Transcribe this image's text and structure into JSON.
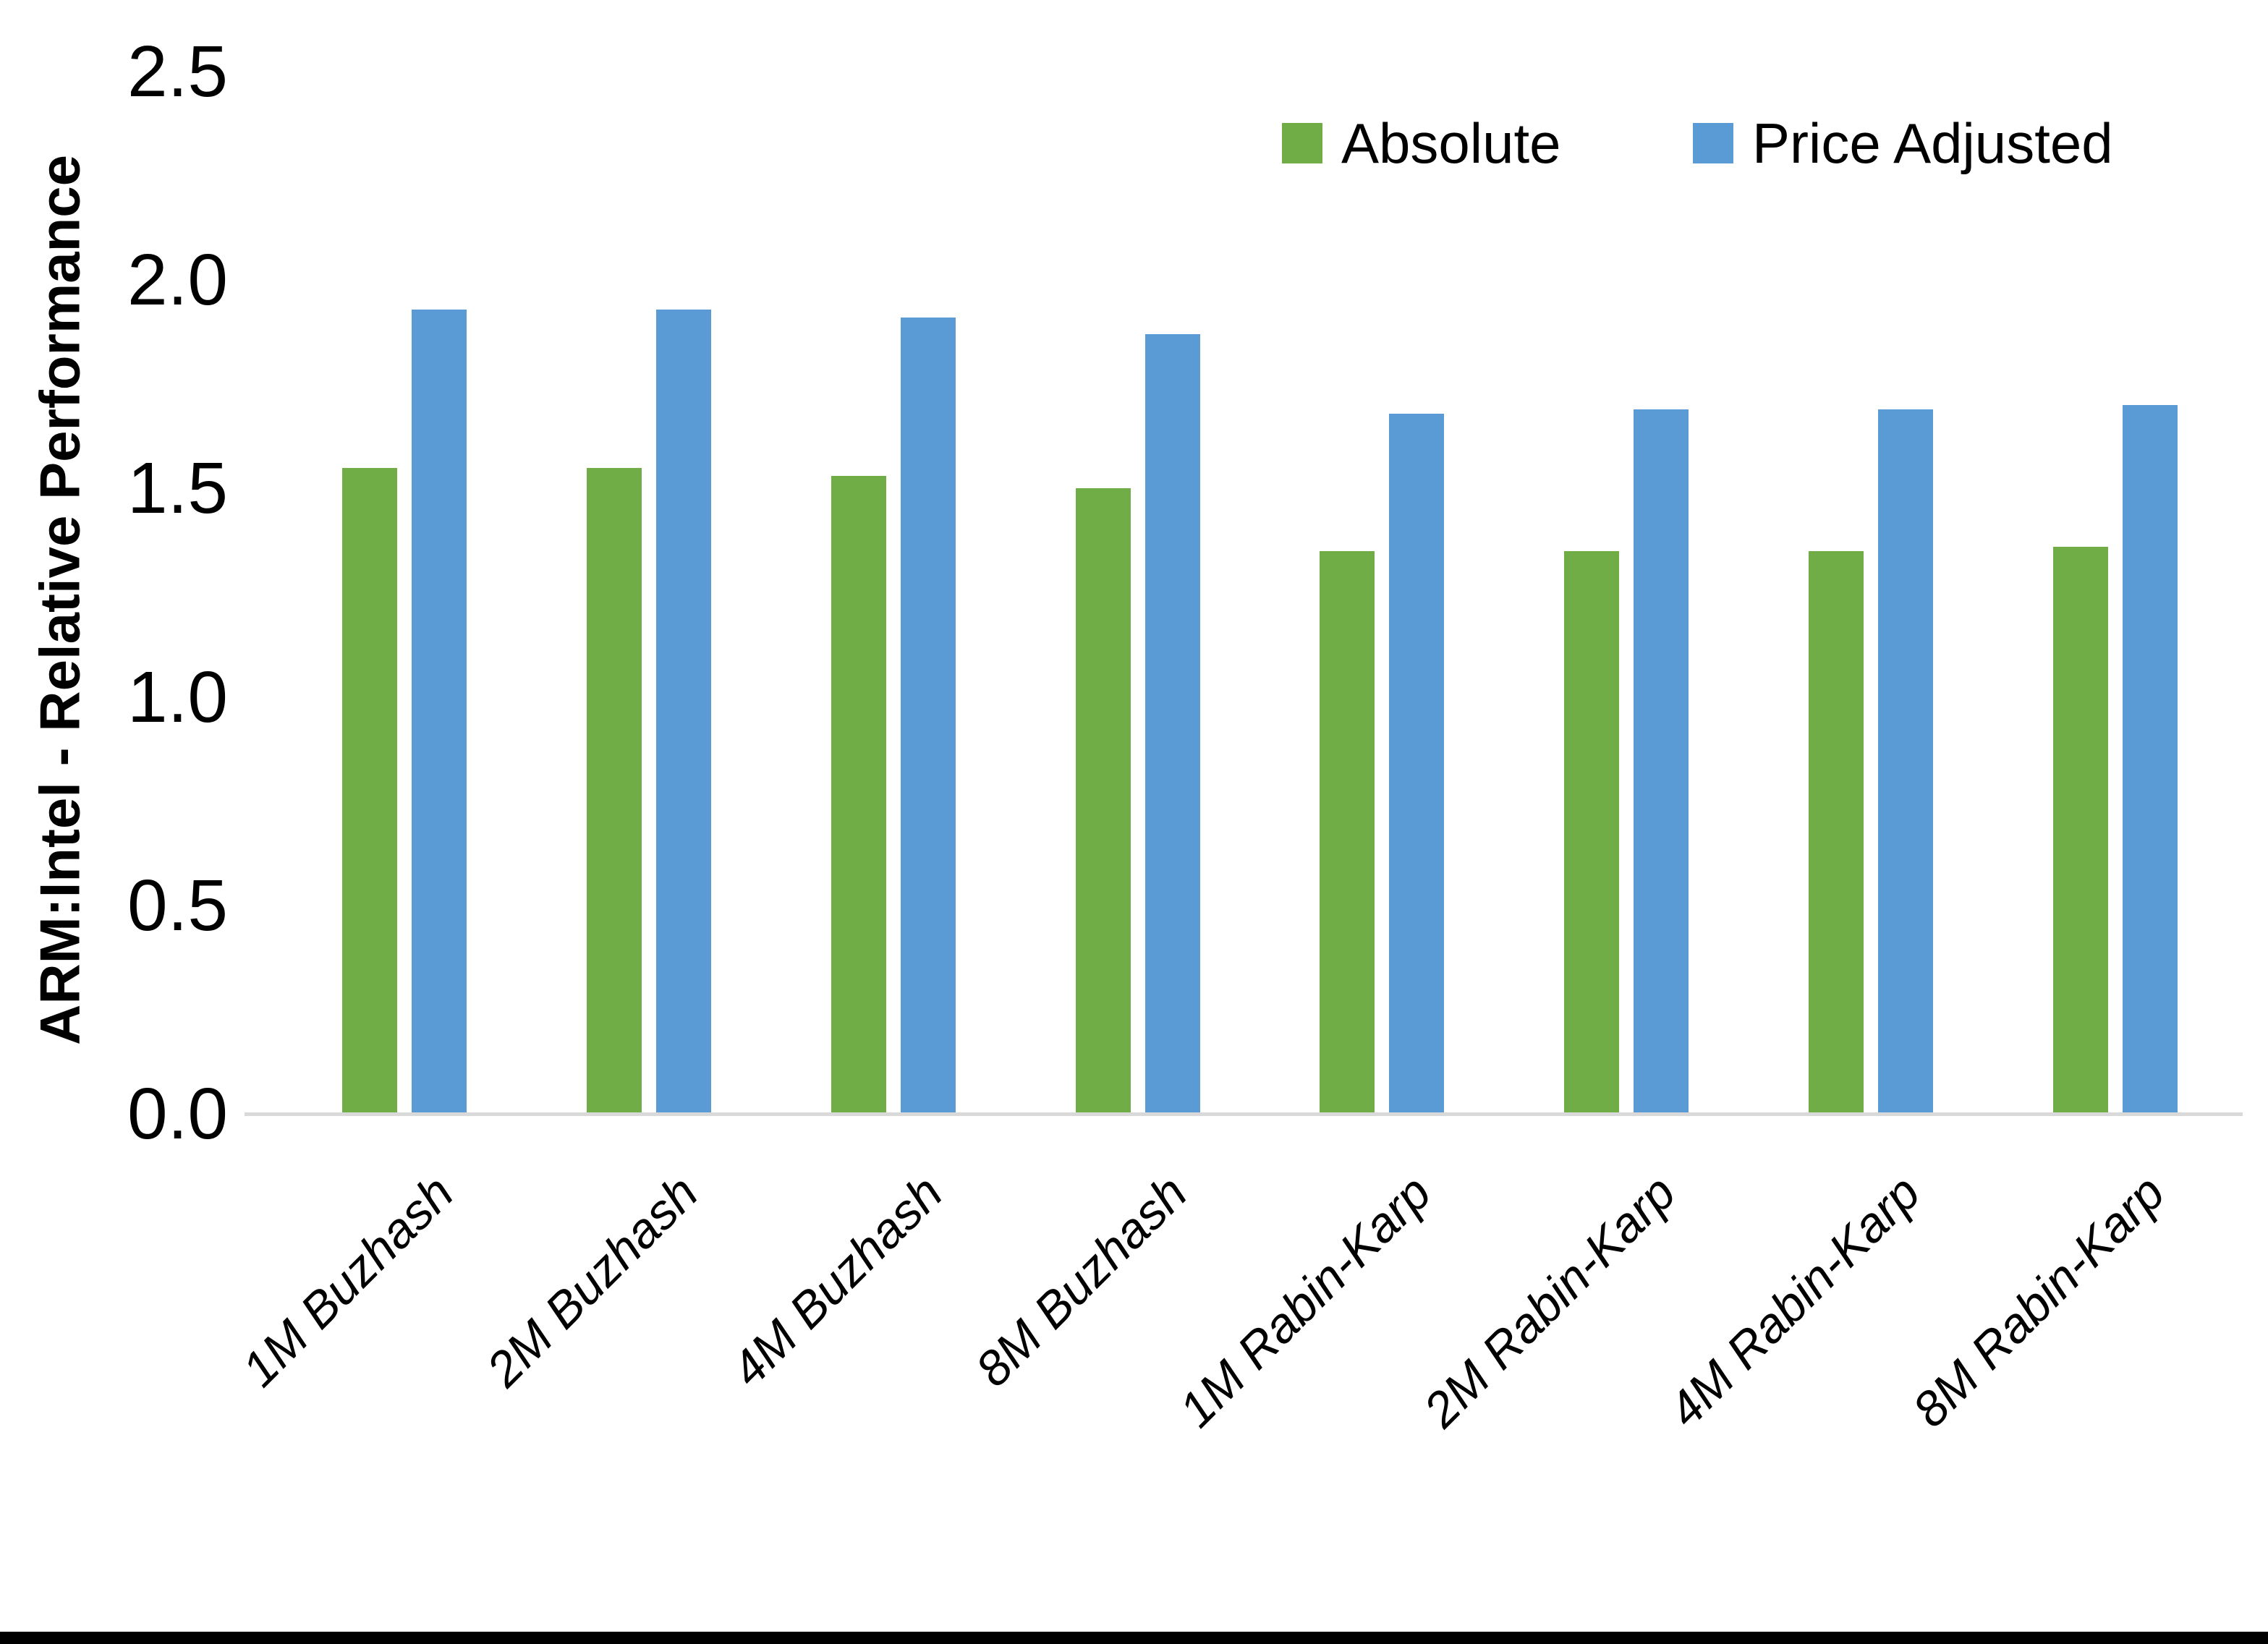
{
  "chart_data": {
    "type": "bar",
    "title": "",
    "ylabel": "ARM:Intel - Relative Performance",
    "xlabel": "",
    "ylim": [
      0,
      2.5
    ],
    "yticks": [
      0.0,
      0.5,
      1.0,
      1.5,
      2.0,
      2.5
    ],
    "ytick_labels": [
      "0.0",
      "0.5",
      "1.0",
      "1.5",
      "2.0",
      "2.5"
    ],
    "grid": false,
    "legend_position": "top-right",
    "categories": [
      "1M Buzhash",
      "2M Buzhash",
      "4M Buzhash",
      "8M Buzhash",
      "1M Rabin-Karp",
      "2M Rabin-Karp",
      "4M Rabin-Karp",
      "8M Rabin-Karp"
    ],
    "series": [
      {
        "name": "Absolute",
        "color": "#70AD47",
        "values": [
          1.55,
          1.55,
          1.53,
          1.5,
          1.35,
          1.35,
          1.35,
          1.36
        ]
      },
      {
        "name": "Price Adjusted",
        "color": "#5B9BD5",
        "values": [
          1.93,
          1.93,
          1.91,
          1.87,
          1.68,
          1.69,
          1.69,
          1.7
        ]
      }
    ]
  },
  "colors": {
    "axis_line": "#D9D9D9",
    "text": "#000000",
    "background": "#FFFFFF",
    "bottom_border": "#000000"
  }
}
